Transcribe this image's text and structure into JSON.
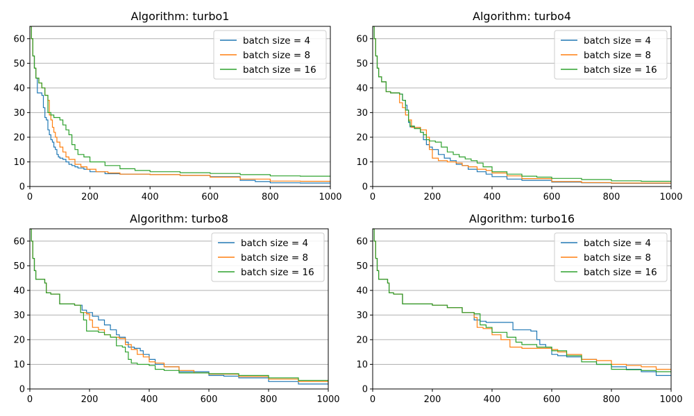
{
  "colors": {
    "batch_4": "#1f77b4",
    "batch_8": "#ff7f0e",
    "batch_16": "#2ca02c"
  },
  "chart_data": [
    {
      "type": "line",
      "title": "Algorithm: turbo1",
      "xlim": [
        0,
        1000
      ],
      "ylim": [
        0,
        65
      ],
      "xticks": [
        0,
        200,
        400,
        600,
        800,
        1000
      ],
      "yticks": [
        0,
        10,
        20,
        30,
        40,
        50,
        60
      ],
      "grid": "horizontal",
      "legend_position": "top-right",
      "series": [
        {
          "name": "batch size = 4",
          "color": "#1f77b4",
          "step": true,
          "x": [
            0,
            5,
            10,
            15,
            20,
            25,
            35,
            40,
            45,
            50,
            55,
            60,
            65,
            70,
            75,
            80,
            85,
            90,
            95,
            100,
            110,
            120,
            130,
            140,
            150,
            160,
            180,
            200,
            250,
            300,
            400,
            500,
            600,
            700,
            750,
            800,
            900,
            1000
          ],
          "y": [
            65,
            60,
            53,
            48,
            44,
            38,
            38,
            37,
            32,
            28,
            27,
            23,
            21,
            19,
            18,
            16,
            15,
            13,
            12,
            11.5,
            11,
            10,
            9,
            8.5,
            8,
            7.5,
            7,
            6,
            5.2,
            5,
            4.8,
            4.5,
            4,
            2.5,
            2,
            1.5,
            1.4,
            1.3
          ]
        },
        {
          "name": "batch size = 8",
          "color": "#ff7f0e",
          "step": true,
          "x": [
            0,
            5,
            10,
            15,
            20,
            30,
            40,
            50,
            60,
            65,
            70,
            75,
            80,
            85,
            90,
            100,
            110,
            120,
            130,
            150,
            170,
            190,
            220,
            260,
            300,
            400,
            500,
            600,
            700,
            800,
            900,
            1000
          ],
          "y": [
            65,
            60,
            53,
            48,
            44,
            42,
            40,
            37,
            35,
            29,
            27,
            24,
            22,
            20,
            18,
            16,
            14,
            12,
            11,
            9,
            8,
            7,
            6,
            5.5,
            5,
            4.8,
            4.5,
            3.8,
            3,
            2.2,
            2.1,
            2
          ]
        },
        {
          "name": "batch size = 16",
          "color": "#2ca02c",
          "step": true,
          "x": [
            0,
            5,
            10,
            15,
            20,
            30,
            40,
            50,
            60,
            70,
            80,
            100,
            110,
            120,
            130,
            140,
            150,
            160,
            180,
            200,
            250,
            300,
            350,
            400,
            500,
            600,
            700,
            800,
            900,
            1000
          ],
          "y": [
            65,
            60,
            53,
            48,
            44,
            42,
            40,
            37,
            30,
            29,
            28,
            27,
            25,
            23,
            21,
            17,
            15,
            13,
            12,
            10,
            8.5,
            7.2,
            6.5,
            6,
            5.6,
            5.3,
            4.8,
            4.3,
            4.2,
            4.2
          ]
        }
      ]
    },
    {
      "type": "line",
      "title": "Algorithm: turbo4",
      "xlim": [
        0,
        1000
      ],
      "ylim": [
        0,
        65
      ],
      "xticks": [
        0,
        200,
        400,
        600,
        800,
        1000
      ],
      "yticks": [
        0,
        10,
        20,
        30,
        40,
        50,
        60
      ],
      "grid": "horizontal",
      "legend_position": "top-right",
      "series": [
        {
          "name": "batch size = 4",
          "color": "#1f77b4",
          "step": true,
          "x": [
            0,
            5,
            10,
            15,
            20,
            30,
            45,
            60,
            90,
            100,
            110,
            115,
            120,
            125,
            140,
            160,
            170,
            180,
            190,
            200,
            220,
            240,
            260,
            280,
            300,
            320,
            350,
            380,
            400,
            450,
            500,
            600,
            700,
            800,
            1000
          ],
          "y": [
            65,
            60,
            53,
            48,
            44.5,
            42.5,
            38.5,
            38,
            37.5,
            35,
            33,
            31,
            26,
            24.2,
            24,
            22,
            19,
            17,
            16,
            15,
            13,
            11.5,
            10.5,
            9,
            8.5,
            7,
            6,
            5,
            4,
            3,
            2.5,
            1.8,
            1.5,
            1.3,
            1.2
          ]
        },
        {
          "name": "batch size = 8",
          "color": "#ff7f0e",
          "step": true,
          "x": [
            0,
            5,
            10,
            15,
            20,
            30,
            45,
            60,
            90,
            100,
            110,
            120,
            130,
            160,
            180,
            190,
            200,
            220,
            250,
            280,
            300,
            320,
            350,
            380,
            400,
            450,
            500,
            600,
            700,
            800,
            1000
          ],
          "y": [
            65,
            60,
            53,
            48,
            44.5,
            42.5,
            38.5,
            38,
            34,
            32,
            29,
            27,
            24,
            23,
            20,
            15,
            11.5,
            10.5,
            10,
            9.5,
            8.5,
            8,
            7,
            6.5,
            5.5,
            4.3,
            3.2,
            2,
            1.6,
            1.4,
            1.3
          ]
        },
        {
          "name": "batch size = 16",
          "color": "#2ca02c",
          "step": true,
          "x": [
            0,
            5,
            10,
            15,
            20,
            30,
            45,
            60,
            90,
            100,
            110,
            120,
            125,
            140,
            160,
            170,
            180,
            190,
            210,
            230,
            250,
            270,
            290,
            310,
            330,
            350,
            370,
            400,
            450,
            500,
            550,
            600,
            700,
            800,
            900,
            1000
          ],
          "y": [
            65,
            60,
            53,
            48,
            44.5,
            42.5,
            38.5,
            38,
            37.5,
            35,
            31,
            26.5,
            24.5,
            23.5,
            22,
            21,
            19,
            18.5,
            18,
            16,
            14,
            13,
            12,
            11.2,
            10.5,
            9.5,
            8,
            6,
            5,
            4.2,
            3.8,
            3.3,
            2.8,
            2.3,
            2.1,
            2
          ]
        }
      ]
    },
    {
      "type": "line",
      "title": "Algorithm: turbo8",
      "xlim": [
        0,
        1000
      ],
      "ylim": [
        0,
        65
      ],
      "xticks": [
        0,
        200,
        400,
        600,
        800,
        1000
      ],
      "yticks": [
        0,
        10,
        20,
        30,
        40,
        50,
        60
      ],
      "grid": "horizontal",
      "legend_position": "top-right",
      "series": [
        {
          "name": "batch size = 4",
          "color": "#1f77b4",
          "step": true,
          "x": [
            0,
            5,
            10,
            15,
            20,
            30,
            50,
            55,
            70,
            100,
            150,
            170,
            175,
            190,
            210,
            230,
            250,
            270,
            290,
            300,
            320,
            330,
            350,
            370,
            380,
            400,
            420,
            450,
            500,
            600,
            650,
            700,
            800,
            900,
            1000
          ],
          "y": [
            65,
            60,
            53,
            48,
            44.5,
            44.5,
            43,
            39,
            38.5,
            34.5,
            34,
            34,
            32,
            31,
            29.5,
            28,
            26,
            24,
            22,
            21,
            19,
            17,
            16.5,
            15.5,
            14,
            12,
            10,
            9,
            7,
            5.5,
            5.2,
            4.5,
            3,
            2,
            1.5
          ]
        },
        {
          "name": "batch size = 8",
          "color": "#ff7f0e",
          "step": true,
          "x": [
            0,
            5,
            10,
            15,
            20,
            30,
            50,
            55,
            70,
            100,
            150,
            160,
            170,
            190,
            200,
            210,
            230,
            250,
            270,
            300,
            320,
            340,
            360,
            380,
            400,
            420,
            450,
            500,
            550,
            600,
            700,
            800,
            900,
            1000
          ],
          "y": [
            65,
            60,
            53,
            48,
            44.5,
            44.5,
            43,
            39,
            38.5,
            34.5,
            34,
            34,
            31,
            30.5,
            28,
            25,
            24,
            22,
            21,
            20.5,
            18,
            16,
            14,
            13,
            11,
            10.5,
            9,
            7.5,
            6.5,
            6,
            5,
            4,
            3,
            2
          ]
        },
        {
          "name": "batch size = 16",
          "color": "#2ca02c",
          "step": true,
          "x": [
            0,
            5,
            10,
            15,
            20,
            30,
            50,
            55,
            70,
            100,
            150,
            160,
            170,
            180,
            190,
            230,
            250,
            270,
            290,
            310,
            320,
            330,
            340,
            360,
            400,
            420,
            450,
            500,
            600,
            700,
            800,
            900,
            1000
          ],
          "y": [
            65,
            60,
            53,
            48,
            44.5,
            44.5,
            43,
            39,
            38.5,
            34.5,
            34,
            34,
            31,
            28,
            23.5,
            23,
            22,
            21,
            17.5,
            17,
            15,
            12,
            10.5,
            10,
            9.5,
            8,
            7.5,
            6.5,
            6.2,
            5.5,
            4.5,
            3.5,
            2.5
          ]
        }
      ]
    },
    {
      "type": "line",
      "title": "Algorithm: turbo16",
      "xlim": [
        0,
        1000
      ],
      "ylim": [
        0,
        65
      ],
      "xticks": [
        0,
        200,
        400,
        600,
        800,
        1000
      ],
      "yticks": [
        0,
        10,
        20,
        30,
        40,
        50,
        60
      ],
      "grid": "horizontal",
      "legend_position": "top-right",
      "series": [
        {
          "name": "batch size = 4",
          "color": "#1f77b4",
          "step": true,
          "x": [
            0,
            5,
            10,
            15,
            20,
            30,
            50,
            55,
            70,
            100,
            200,
            250,
            300,
            340,
            360,
            380,
            470,
            530,
            550,
            560,
            580,
            600,
            620,
            650,
            700,
            750,
            800,
            850,
            900,
            950,
            1000
          ],
          "y": [
            65,
            60,
            53,
            48,
            44.5,
            44.5,
            43,
            39,
            38.5,
            34.5,
            34,
            33,
            31,
            28,
            27.5,
            27,
            24,
            23.5,
            20,
            18,
            17,
            14,
            13.5,
            13,
            12,
            10,
            9,
            8,
            7,
            5.5,
            5.5
          ]
        },
        {
          "name": "batch size = 8",
          "color": "#ff7f0e",
          "step": true,
          "x": [
            0,
            5,
            10,
            15,
            20,
            30,
            50,
            55,
            70,
            100,
            200,
            250,
            300,
            340,
            350,
            370,
            400,
            430,
            460,
            500,
            550,
            600,
            620,
            650,
            700,
            750,
            800,
            850,
            900,
            950,
            1000
          ],
          "y": [
            65,
            60,
            53,
            48,
            44.5,
            44.5,
            43,
            39,
            38.5,
            34.5,
            34,
            33,
            31,
            29,
            25,
            24.5,
            22,
            20,
            17,
            16.5,
            16.5,
            16,
            15,
            14,
            12,
            11.5,
            10,
            9.5,
            9,
            8,
            7
          ]
        },
        {
          "name": "batch size = 16",
          "color": "#2ca02c",
          "step": true,
          "x": [
            0,
            5,
            10,
            15,
            20,
            30,
            50,
            55,
            70,
            100,
            200,
            250,
            300,
            340,
            360,
            380,
            400,
            450,
            480,
            500,
            550,
            600,
            650,
            700,
            750,
            800,
            850,
            900,
            950,
            1000
          ],
          "y": [
            65,
            60,
            53,
            48,
            44.5,
            44.5,
            43,
            39,
            38.5,
            34.5,
            34,
            33,
            31,
            30.5,
            26,
            25,
            23,
            21,
            19,
            18,
            17,
            15.5,
            13.5,
            11,
            10,
            8,
            7.8,
            7.5,
            7,
            6
          ]
        }
      ]
    }
  ]
}
